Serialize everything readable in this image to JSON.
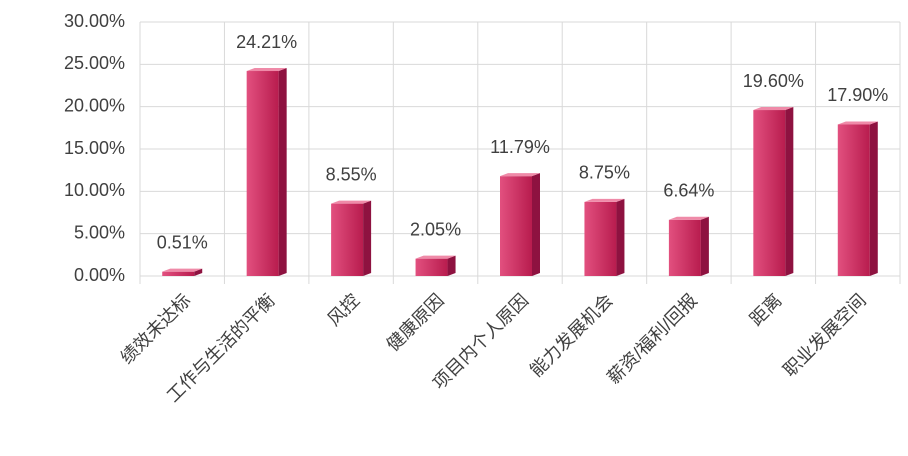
{
  "chart_data": {
    "type": "bar",
    "categories": [
      "绩效未达标",
      "工作与生活的平衡",
      "风控",
      "健康原因",
      "项目内个人原因",
      "能力发展机会",
      "薪资/福利/回报",
      "距离",
      "职业发展空间"
    ],
    "values": [
      0.51,
      24.21,
      8.55,
      2.05,
      11.79,
      8.75,
      6.64,
      19.6,
      17.9
    ],
    "value_labels": [
      "0.51%",
      "24.21%",
      "8.55%",
      "2.05%",
      "11.79%",
      "8.75%",
      "6.64%",
      "19.60%",
      "17.90%"
    ],
    "color": "#c8285a",
    "ylim": [
      0,
      30
    ],
    "yticks": [
      {
        "value": 0,
        "label": "0.00%"
      },
      {
        "value": 5,
        "label": "5.00%"
      },
      {
        "value": 10,
        "label": "10.00%"
      },
      {
        "value": 15,
        "label": "15.00%"
      },
      {
        "value": 20,
        "label": "20.00%"
      },
      {
        "value": 25,
        "label": "25.00%"
      },
      {
        "value": 30,
        "label": "30.00%"
      }
    ],
    "grid": true
  }
}
